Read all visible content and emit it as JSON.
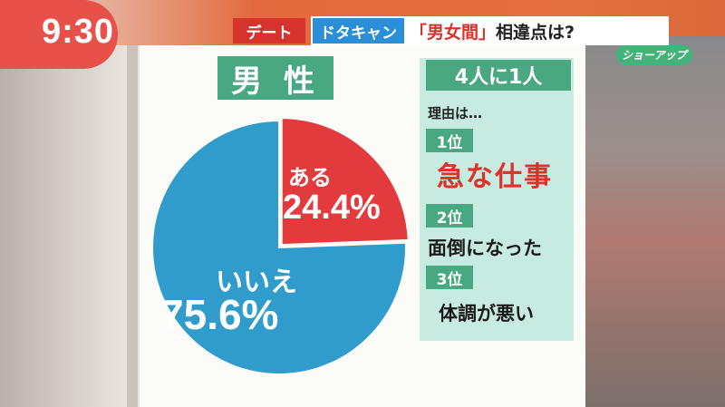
{
  "clock": "9:30",
  "caption": {
    "tag": "デート",
    "segment": "ドタキャン",
    "highlight": "「男女間」",
    "rest": "相違点は?",
    "logo": "ショーアップ"
  },
  "chart_data": {
    "type": "pie",
    "title": "男 性",
    "slices": [
      {
        "label": "ある",
        "value": 24.4,
        "display": "24.4%",
        "color": "#e33a3e"
      },
      {
        "label": "いいえ",
        "value": 75.6,
        "display": "75.6%",
        "color": "#2f9ccc"
      }
    ]
  },
  "panel": {
    "header": "4人に1人",
    "reason_label": "理由は…",
    "ranks": [
      {
        "rank": "1位",
        "reason": "急な仕事"
      },
      {
        "rank": "2位",
        "reason": "面倒になった"
      },
      {
        "rank": "3位",
        "reason": "体調が悪い"
      }
    ]
  }
}
